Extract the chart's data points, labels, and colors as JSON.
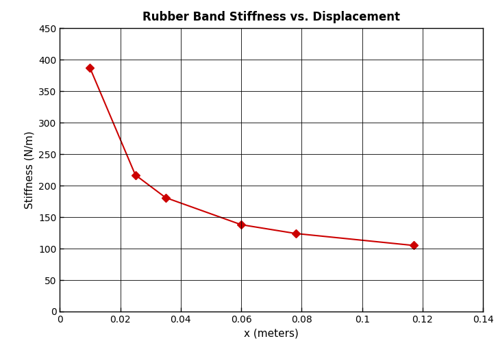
{
  "title": "Rubber Band Stiffness vs. Displacement",
  "xlabel": "x (meters)",
  "ylabel": "Stiffness (N/m)",
  "x_data": [
    0.01,
    0.025,
    0.035,
    0.06,
    0.078,
    0.117
  ],
  "y_data": [
    387,
    217,
    181,
    138,
    124,
    105
  ],
  "line_color": "#CC0000",
  "marker": "D",
  "marker_size": 6,
  "marker_facecolor": "#CC0000",
  "xlim": [
    0,
    0.14
  ],
  "ylim": [
    0,
    450
  ],
  "xticks": [
    0,
    0.02,
    0.04,
    0.06,
    0.08,
    0.1,
    0.12,
    0.14
  ],
  "yticks": [
    0,
    50,
    100,
    150,
    200,
    250,
    300,
    350,
    400,
    450
  ],
  "grid_color": "#000000",
  "title_fontsize": 12,
  "label_fontsize": 11,
  "tick_fontsize": 10,
  "background_color": "#FFFFFF",
  "figure_width": 7.27,
  "figure_height": 5.17,
  "dpi": 100
}
